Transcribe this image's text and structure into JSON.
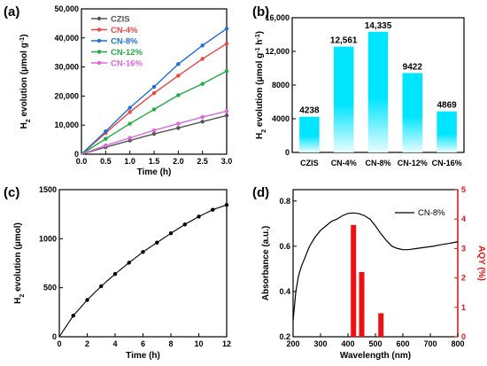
{
  "chart_data": [
    {
      "panel_label": "(a)",
      "type": "line",
      "xlabel": "Time (h)",
      "ylabel_html": [
        "H",
        "2",
        " evolution (μmol g",
        "-1",
        ")"
      ],
      "xlim": [
        0,
        3.0
      ],
      "ylim": [
        0,
        50000
      ],
      "xticks": [
        0.0,
        0.5,
        1.0,
        1.5,
        2.0,
        2.5,
        3.0
      ],
      "xtick_labels": [
        "0.0",
        "0.5",
        "1.0",
        "1.5",
        "2.0",
        "2.5",
        "3.0"
      ],
      "yticks": [
        0,
        10000,
        20000,
        30000,
        40000,
        50000
      ],
      "ytick_labels": [
        "0",
        "10,000",
        "20,000",
        "30,000",
        "40,000",
        "50,000"
      ],
      "legend_position": "top-left",
      "x": [
        0,
        0.5,
        1.0,
        1.5,
        2.0,
        2.5,
        3.0
      ],
      "series": [
        {
          "name": "CZIS",
          "color": "#555555",
          "values": [
            0,
            2400,
            4700,
            7000,
            9000,
            11200,
            13300
          ]
        },
        {
          "name": "CN-4%",
          "color": "#ee4444",
          "values": [
            0,
            7300,
            14500,
            21000,
            27000,
            32800,
            38000
          ]
        },
        {
          "name": "CN-8%",
          "color": "#1f6fd6",
          "values": [
            0,
            7900,
            16000,
            23200,
            31000,
            37400,
            43200
          ]
        },
        {
          "name": "CN-12%",
          "color": "#22aa44",
          "values": [
            0,
            5300,
            10500,
            15400,
            20300,
            24200,
            28600
          ]
        },
        {
          "name": "CN-16%",
          "color": "#dd66dd",
          "values": [
            0,
            3000,
            5600,
            8200,
            10500,
            12800,
            14800
          ]
        }
      ]
    },
    {
      "panel_label": "(b)",
      "type": "bar",
      "ylabel_html": [
        "H",
        "2",
        " evolution (μmol g",
        "-1",
        " h",
        "-1",
        ")"
      ],
      "ylim": [
        0,
        16000
      ],
      "yticks": [
        0,
        4000,
        8000,
        12000,
        16000
      ],
      "ytick_labels": [
        "0",
        "4000",
        "8000",
        "12,000",
        "16,000"
      ],
      "categories": [
        "CZIS",
        "CN-4%",
        "CN-8%",
        "CN-12%",
        "CN-16%"
      ],
      "values": [
        4238,
        12561,
        14335,
        9422,
        4869
      ],
      "value_labels": [
        "4238",
        "12,561",
        "14,335",
        "9422",
        "4869"
      ],
      "bar_color": "#00e5ff"
    },
    {
      "panel_label": "(c)",
      "type": "line",
      "xlabel": "Time (h)",
      "ylabel_html": [
        "H",
        "2",
        " evolution (μmol)"
      ],
      "xlim": [
        0,
        12
      ],
      "ylim": [
        0,
        1500
      ],
      "xticks": [
        0,
        2,
        4,
        6,
        8,
        10,
        12
      ],
      "xtick_labels": [
        "0",
        "2",
        "4",
        "6",
        "8",
        "10",
        "12"
      ],
      "yticks": [
        0,
        500,
        1000,
        1500
      ],
      "ytick_labels": [
        "0",
        "500",
        "1000",
        "1500"
      ],
      "x": [
        0,
        1,
        2,
        3,
        4,
        5,
        6,
        7,
        8,
        9,
        10,
        11,
        12
      ],
      "values": [
        0,
        215,
        375,
        515,
        640,
        755,
        865,
        960,
        1055,
        1145,
        1225,
        1295,
        1345
      ]
    },
    {
      "panel_label": "(d)",
      "type": "line",
      "xlabel": "Wavelength (nm)",
      "ylabel": "Absorbance (a.u.)",
      "y2label": "AQY (%)",
      "xlim": [
        200,
        800
      ],
      "ylim": [
        0.2,
        0.85
      ],
      "y2lim": [
        0,
        5
      ],
      "xticks": [
        200,
        300,
        400,
        500,
        600,
        700,
        800
      ],
      "xtick_labels": [
        "200",
        "300",
        "400",
        "500",
        "600",
        "700",
        "800"
      ],
      "yticks": [
        0.2,
        0.4,
        0.6,
        0.8
      ],
      "ytick_labels": [
        "0.2",
        "0.4",
        "0.6",
        "0.8"
      ],
      "y2ticks": [
        0,
        1,
        2,
        3,
        4,
        5
      ],
      "y2tick_labels": [
        "0",
        "1",
        "2",
        "3",
        "4",
        "5"
      ],
      "legend_position": "top-right",
      "absorbance": {
        "name": "CN-8%",
        "x": [
          200,
          210,
          220,
          230,
          240,
          250,
          260,
          280,
          300,
          320,
          340,
          360,
          380,
          400,
          420,
          440,
          460,
          480,
          500,
          520,
          540,
          560,
          580,
          600,
          620,
          650,
          680,
          710,
          740,
          770,
          800
        ],
        "y": [
          0.27,
          0.4,
          0.47,
          0.51,
          0.54,
          0.57,
          0.6,
          0.64,
          0.67,
          0.69,
          0.71,
          0.72,
          0.735,
          0.745,
          0.747,
          0.744,
          0.735,
          0.72,
          0.69,
          0.655,
          0.625,
          0.6,
          0.59,
          0.585,
          0.585,
          0.59,
          0.595,
          0.6,
          0.607,
          0.613,
          0.62
        ]
      },
      "aqy": {
        "x": [
          420,
          450,
          520
        ],
        "values": [
          3.8,
          2.2,
          0.8
        ],
        "color": "#ee1111"
      }
    }
  ]
}
